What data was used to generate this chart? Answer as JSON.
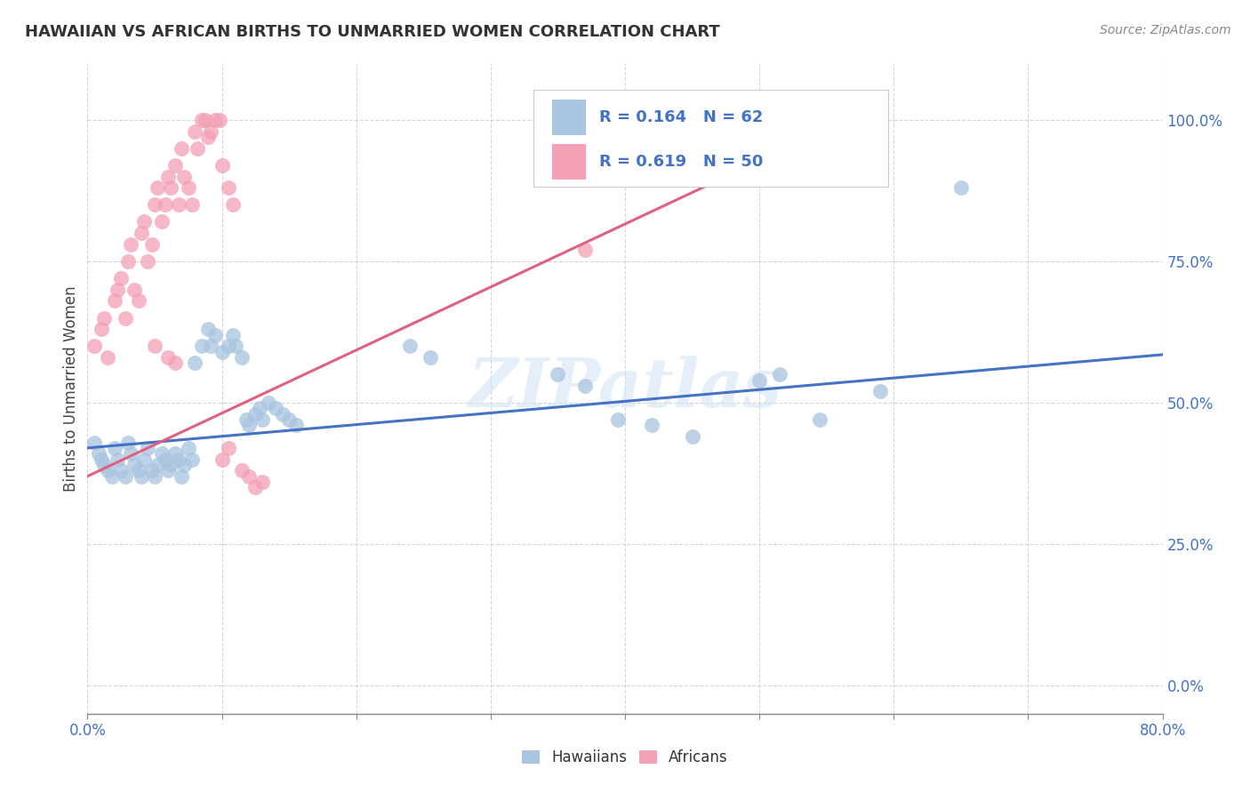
{
  "title": "HAWAIIAN VS AFRICAN BIRTHS TO UNMARRIED WOMEN CORRELATION CHART",
  "source": "Source: ZipAtlas.com",
  "ylabel": "Births to Unmarried Women",
  "xlim": [
    0.0,
    0.8
  ],
  "ylim": [
    -0.05,
    1.1
  ],
  "watermark": "ZIPatlas",
  "legend_hawaiians": "Hawaiians",
  "legend_africans": "Africans",
  "r_hawaiians": "R = 0.164",
  "n_hawaiians": "N = 62",
  "r_africans": "R = 0.619",
  "n_africans": "N = 50",
  "hawaiian_color": "#a8c4e0",
  "african_color": "#f4a0b5",
  "hawaiian_line_color": "#4472c4",
  "african_line_color": "#e06080",
  "text_color": "#4472c4",
  "tick_label_color": "#4472c4",
  "hawaiian_scatter": [
    [
      0.005,
      0.43
    ],
    [
      0.008,
      0.41
    ],
    [
      0.01,
      0.4
    ],
    [
      0.012,
      0.39
    ],
    [
      0.015,
      0.38
    ],
    [
      0.018,
      0.37
    ],
    [
      0.02,
      0.42
    ],
    [
      0.022,
      0.4
    ],
    [
      0.025,
      0.38
    ],
    [
      0.028,
      0.37
    ],
    [
      0.03,
      0.43
    ],
    [
      0.032,
      0.41
    ],
    [
      0.035,
      0.39
    ],
    [
      0.038,
      0.38
    ],
    [
      0.04,
      0.37
    ],
    [
      0.042,
      0.4
    ],
    [
      0.045,
      0.42
    ],
    [
      0.048,
      0.38
    ],
    [
      0.05,
      0.37
    ],
    [
      0.052,
      0.39
    ],
    [
      0.055,
      0.41
    ],
    [
      0.058,
      0.4
    ],
    [
      0.06,
      0.38
    ],
    [
      0.062,
      0.39
    ],
    [
      0.065,
      0.41
    ],
    [
      0.068,
      0.4
    ],
    [
      0.07,
      0.37
    ],
    [
      0.072,
      0.39
    ],
    [
      0.075,
      0.42
    ],
    [
      0.078,
      0.4
    ],
    [
      0.08,
      0.57
    ],
    [
      0.085,
      0.6
    ],
    [
      0.09,
      0.63
    ],
    [
      0.092,
      0.6
    ],
    [
      0.095,
      0.62
    ],
    [
      0.1,
      0.59
    ],
    [
      0.105,
      0.6
    ],
    [
      0.108,
      0.62
    ],
    [
      0.11,
      0.6
    ],
    [
      0.115,
      0.58
    ],
    [
      0.118,
      0.47
    ],
    [
      0.12,
      0.46
    ],
    [
      0.125,
      0.48
    ],
    [
      0.128,
      0.49
    ],
    [
      0.13,
      0.47
    ],
    [
      0.135,
      0.5
    ],
    [
      0.14,
      0.49
    ],
    [
      0.145,
      0.48
    ],
    [
      0.15,
      0.47
    ],
    [
      0.155,
      0.46
    ],
    [
      0.24,
      0.6
    ],
    [
      0.255,
      0.58
    ],
    [
      0.35,
      0.55
    ],
    [
      0.37,
      0.53
    ],
    [
      0.395,
      0.47
    ],
    [
      0.42,
      0.46
    ],
    [
      0.45,
      0.44
    ],
    [
      0.5,
      0.54
    ],
    [
      0.515,
      0.55
    ],
    [
      0.545,
      0.47
    ],
    [
      0.59,
      0.52
    ],
    [
      0.65,
      0.88
    ]
  ],
  "african_scatter": [
    [
      0.005,
      0.6
    ],
    [
      0.01,
      0.63
    ],
    [
      0.012,
      0.65
    ],
    [
      0.015,
      0.58
    ],
    [
      0.02,
      0.68
    ],
    [
      0.022,
      0.7
    ],
    [
      0.025,
      0.72
    ],
    [
      0.028,
      0.65
    ],
    [
      0.03,
      0.75
    ],
    [
      0.032,
      0.78
    ],
    [
      0.035,
      0.7
    ],
    [
      0.038,
      0.68
    ],
    [
      0.04,
      0.8
    ],
    [
      0.042,
      0.82
    ],
    [
      0.045,
      0.75
    ],
    [
      0.048,
      0.78
    ],
    [
      0.05,
      0.85
    ],
    [
      0.052,
      0.88
    ],
    [
      0.055,
      0.82
    ],
    [
      0.058,
      0.85
    ],
    [
      0.06,
      0.9
    ],
    [
      0.062,
      0.88
    ],
    [
      0.065,
      0.92
    ],
    [
      0.068,
      0.85
    ],
    [
      0.07,
      0.95
    ],
    [
      0.072,
      0.9
    ],
    [
      0.075,
      0.88
    ],
    [
      0.078,
      0.85
    ],
    [
      0.08,
      0.98
    ],
    [
      0.082,
      0.95
    ],
    [
      0.085,
      1.0
    ],
    [
      0.088,
      1.0
    ],
    [
      0.09,
      0.97
    ],
    [
      0.092,
      0.98
    ],
    [
      0.095,
      1.0
    ],
    [
      0.098,
      1.0
    ],
    [
      0.1,
      0.92
    ],
    [
      0.105,
      0.88
    ],
    [
      0.108,
      0.85
    ],
    [
      0.05,
      0.6
    ],
    [
      0.06,
      0.58
    ],
    [
      0.065,
      0.57
    ],
    [
      0.1,
      0.4
    ],
    [
      0.105,
      0.42
    ],
    [
      0.115,
      0.38
    ],
    [
      0.12,
      0.37
    ],
    [
      0.125,
      0.35
    ],
    [
      0.13,
      0.36
    ],
    [
      0.37,
      0.77
    ],
    [
      0.565,
      1.0
    ]
  ],
  "hawaiian_trendline": [
    [
      0.0,
      0.42
    ],
    [
      0.8,
      0.585
    ]
  ],
  "african_trendline": [
    [
      0.0,
      0.37
    ],
    [
      0.565,
      1.0
    ]
  ]
}
